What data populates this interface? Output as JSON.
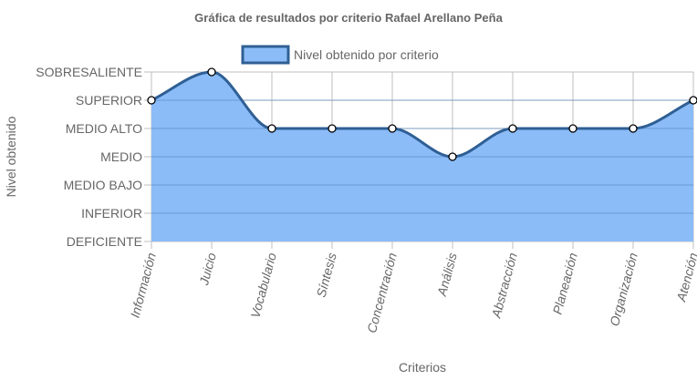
{
  "chart_data": {
    "type": "area",
    "title": "Gráfica de resultados por criterio Rafael Arellano Peña",
    "xlabel": "Criterios",
    "ylabel": "Nivel obtenido",
    "y_levels": [
      "DEFICIENTE",
      "INFERIOR",
      "MEDIO BAJO",
      "MEDIO",
      "MEDIO ALTO",
      "SUPERIOR",
      "SOBRESALIENTE"
    ],
    "categories": [
      "Información",
      "Juicio",
      "Vocabulario",
      "Síntesis",
      "Concentración",
      "Análisis",
      "Abstracción",
      "Planeación",
      "Organización",
      "Atención"
    ],
    "series": [
      {
        "name": "Nivel obtenido por criterio",
        "values": [
          "SUPERIOR",
          "SOBRESALIENTE",
          "MEDIO ALTO",
          "MEDIO ALTO",
          "MEDIO ALTO",
          "MEDIO",
          "MEDIO ALTO",
          "MEDIO ALTO",
          "MEDIO ALTO",
          "SUPERIOR"
        ],
        "fill_color": "#8bbcf7",
        "line_color": "#2f5f94"
      }
    ],
    "legend_position": "top",
    "grid": true
  }
}
